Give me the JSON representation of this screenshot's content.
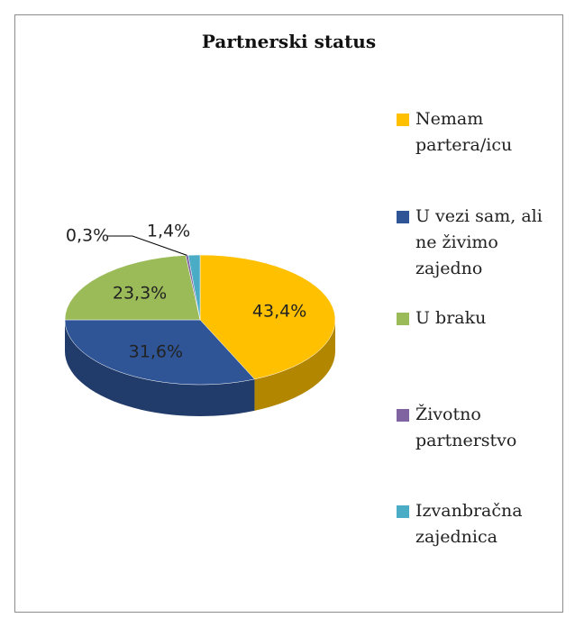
{
  "chart_data": {
    "type": "pie3d",
    "title": "Partnerski status",
    "categories": [
      "Nemam partera/icu",
      "U vezi sam, ali ne živimo zajedno",
      "U braku",
      "Životno partnerstvo",
      "Izvanbračna zajednica"
    ],
    "values": [
      43.4,
      31.6,
      23.3,
      0.3,
      1.4
    ],
    "value_labels": [
      "43,4%",
      "31,6%",
      "23,3%",
      "0,3%",
      "1,4%"
    ],
    "colors": [
      "#FFC000",
      "#2F5597",
      "#9BBB59",
      "#8064A2",
      "#4BACC6"
    ],
    "legend": "right"
  }
}
